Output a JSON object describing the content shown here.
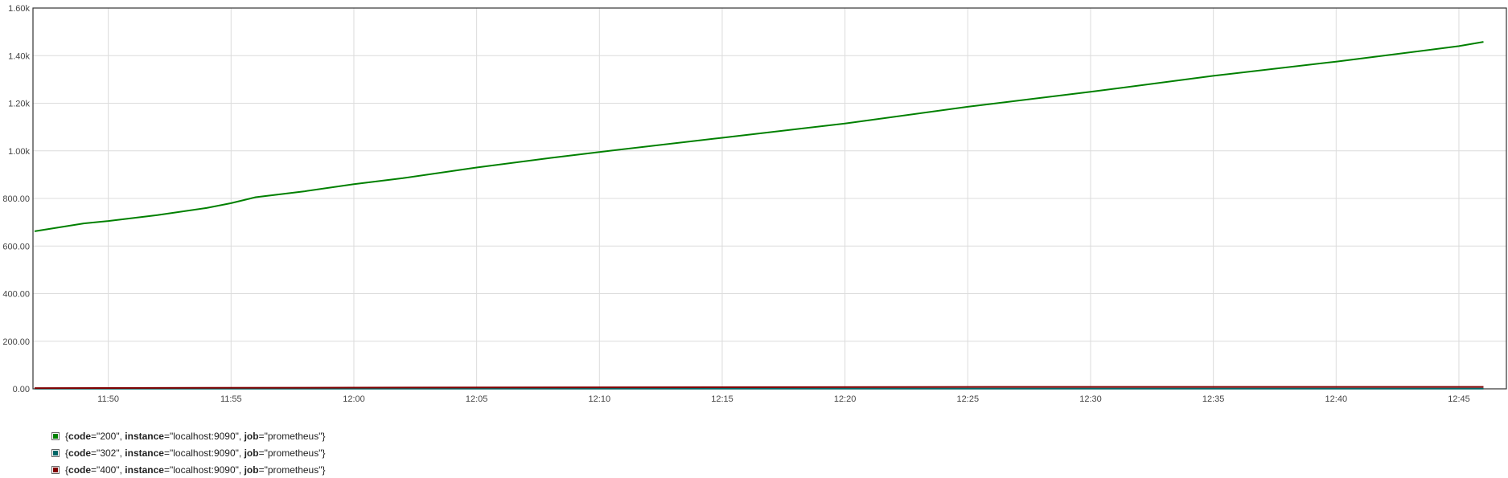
{
  "chart_data": {
    "type": "line",
    "ylim": [
      0,
      1600
    ],
    "y_ticks": [
      "0.00",
      "200.00",
      "400.00",
      "600.00",
      "800.00",
      "1.00k",
      "1.20k",
      "1.40k",
      "1.60k"
    ],
    "y_tick_values": [
      0,
      200,
      400,
      600,
      800,
      1000,
      1200,
      1400,
      1600
    ],
    "x_ticks": [
      "11:50",
      "11:55",
      "12:00",
      "12:05",
      "12:10",
      "12:15",
      "12:20",
      "12:25",
      "12:30",
      "12:35",
      "12:40",
      "12:45"
    ],
    "xlim": [
      "11:46:56",
      "12:46:56"
    ],
    "grid": true,
    "legend_position": "bottom-left",
    "series": [
      {
        "color": "#008000",
        "labels": {
          "code": "200",
          "instance": "localhost:9090",
          "job": "prometheus"
        },
        "points": [
          [
            "11:47",
            662
          ],
          [
            "11:49",
            695
          ],
          [
            "11:50",
            705
          ],
          [
            "11:52",
            730
          ],
          [
            "11:54",
            760
          ],
          [
            "11:55",
            780
          ],
          [
            "11:56",
            805
          ],
          [
            "11:58",
            830
          ],
          [
            "12:00",
            860
          ],
          [
            "12:02",
            885
          ],
          [
            "12:05",
            930
          ],
          [
            "12:08",
            970
          ],
          [
            "12:10",
            995
          ],
          [
            "12:15",
            1055
          ],
          [
            "12:20",
            1115
          ],
          [
            "12:25",
            1185
          ],
          [
            "12:30",
            1248
          ],
          [
            "12:35",
            1315
          ],
          [
            "12:40",
            1375
          ],
          [
            "12:45",
            1440
          ],
          [
            "12:46",
            1458
          ]
        ]
      },
      {
        "color": "#006666",
        "labels": {
          "code": "302",
          "instance": "localhost:9090",
          "job": "prometheus"
        },
        "points": [
          [
            "11:47",
            1
          ],
          [
            "12:46",
            1
          ]
        ]
      },
      {
        "color": "#800000",
        "labels": {
          "code": "400",
          "instance": "localhost:9090",
          "job": "prometheus"
        },
        "points": [
          [
            "11:47",
            3
          ],
          [
            "12:00",
            5
          ],
          [
            "12:26",
            8
          ],
          [
            "12:46",
            8
          ]
        ]
      }
    ]
  }
}
